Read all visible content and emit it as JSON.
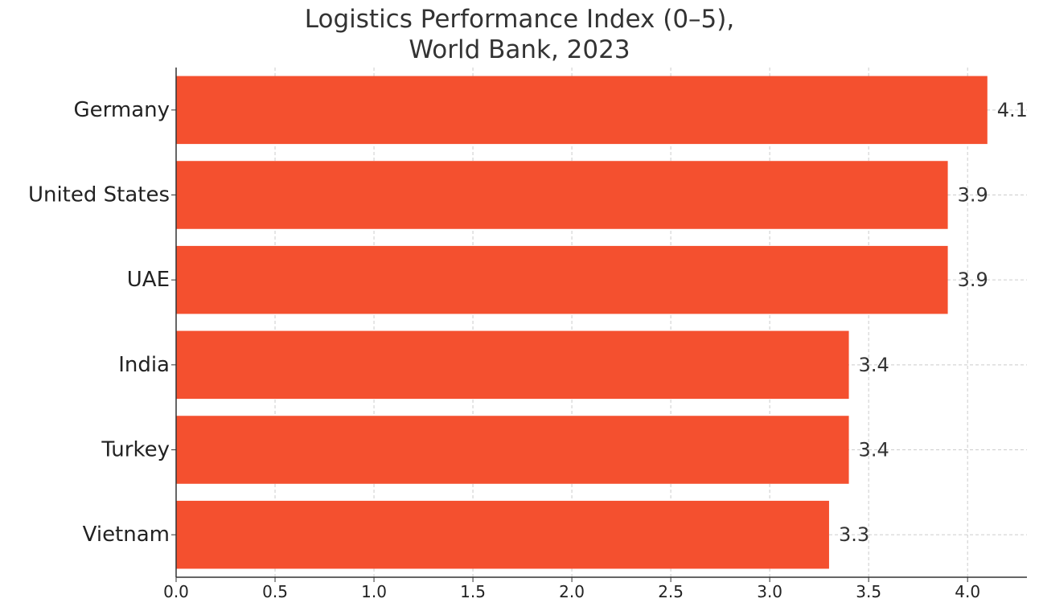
{
  "chart_data": {
    "type": "bar",
    "orientation": "horizontal",
    "title_lines": [
      "Logistics Performance Index (0–5),",
      "World Bank, 2023"
    ],
    "xlabel": "",
    "ylabel": "",
    "categories": [
      "Germany",
      "United States",
      "UAE",
      "India",
      "Turkey",
      "Vietnam"
    ],
    "values": [
      4.1,
      3.9,
      3.9,
      3.4,
      3.4,
      3.3
    ],
    "value_labels": [
      "4.1",
      "3.9",
      "3.9",
      "3.4",
      "3.4",
      "3.3"
    ],
    "xlim": [
      0,
      4.3
    ],
    "xticks": [
      "0.0",
      "0.5",
      "1.0",
      "1.5",
      "2.0",
      "2.5",
      "3.0",
      "3.5",
      "4.0"
    ],
    "grid": true,
    "bar_color": "#f4502f"
  }
}
